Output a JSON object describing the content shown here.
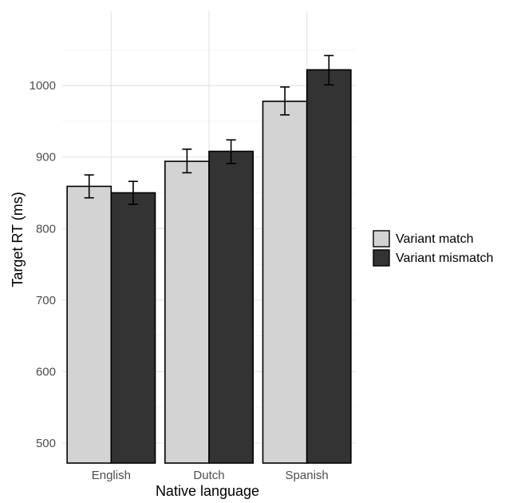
{
  "chart_data": {
    "type": "bar",
    "title": "",
    "xlabel": "Native language",
    "ylabel": "Target RT (ms)",
    "categories": [
      "English",
      "Dutch",
      "Spanish"
    ],
    "series": [
      {
        "name": "Variant match",
        "color": "#d3d3d3",
        "values": [
          859,
          894,
          978
        ],
        "error_low": [
          843,
          878,
          959
        ],
        "error_high": [
          875,
          911,
          998
        ]
      },
      {
        "name": "Variant mismatch",
        "color": "#333333",
        "values": [
          850,
          908,
          1022
        ],
        "error_low": [
          834,
          891,
          1001
        ],
        "error_high": [
          866,
          924,
          1042
        ]
      }
    ],
    "ylim": [
      472,
      1104
    ],
    "yticks": [
      500,
      600,
      700,
      800,
      900,
      1000
    ],
    "grid": true,
    "legend_position": "right",
    "bar_outline_color": "#000000"
  }
}
